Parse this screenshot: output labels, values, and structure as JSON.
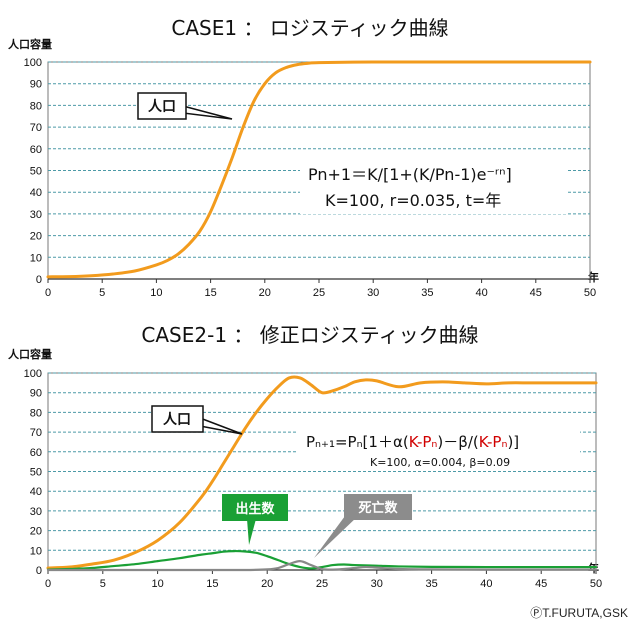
{
  "chart_data": [
    {
      "type": "line",
      "title": "CASE1 ： ロジスティック曲線",
      "ylabel": "人口容量",
      "xlabel": "年",
      "xlim": [
        0,
        50
      ],
      "ylim": [
        0,
        100
      ],
      "x_ticks": [
        0,
        5,
        10,
        15,
        20,
        25,
        30,
        35,
        40,
        45,
        50
      ],
      "y_ticks": [
        0,
        10,
        20,
        30,
        40,
        50,
        60,
        70,
        80,
        90,
        100
      ],
      "grid": true,
      "series": [
        {
          "name": "人口",
          "color": "#f29b1d",
          "x": [
            0,
            2,
            4,
            6,
            8,
            10,
            11,
            12,
            13,
            14,
            15,
            16,
            17,
            18,
            19,
            20,
            21,
            22,
            23,
            24,
            25,
            30,
            35,
            40,
            45,
            50
          ],
          "values": [
            1,
            1.1,
            1.5,
            2.3,
            3.7,
            6.5,
            8.5,
            11.5,
            16,
            22,
            31,
            43,
            56,
            70,
            82,
            90,
            95,
            97.5,
            98.8,
            99.4,
            99.7,
            100,
            100,
            100,
            100,
            100
          ]
        }
      ],
      "annotations": {
        "callout": "人口",
        "formula_line1": "Pn+1＝K/[1+(K/Pn-1)e⁻ʳⁿ]",
        "formula_line2": "K=100, r=0.035, t=年"
      }
    },
    {
      "type": "line",
      "title": "CASE2-1 ： 修正ロジスティック曲線",
      "ylabel": "人口容量",
      "xlabel": "年",
      "xlim": [
        0,
        50
      ],
      "ylim": [
        0,
        100
      ],
      "x_ticks": [
        0,
        5,
        10,
        15,
        20,
        25,
        30,
        35,
        40,
        45,
        50
      ],
      "y_ticks": [
        0,
        10,
        20,
        30,
        40,
        50,
        60,
        70,
        80,
        90,
        100
      ],
      "grid": true,
      "series": [
        {
          "name": "人口",
          "color": "#f29b1d",
          "x": [
            0,
            2,
            4,
            6,
            8,
            10,
            12,
            14,
            15,
            16,
            17,
            18,
            19,
            20,
            21,
            22,
            23,
            24,
            25,
            26,
            27,
            28,
            29,
            30,
            32,
            34,
            36,
            38,
            40,
            42,
            44,
            46,
            48,
            50
          ],
          "values": [
            1,
            1.5,
            3,
            5,
            9,
            15,
            24,
            37,
            45,
            54,
            63,
            72,
            80,
            87,
            93,
            97.5,
            97.5,
            94,
            90,
            91,
            93,
            95.5,
            96.5,
            96,
            93,
            95,
            95.5,
            95,
            94.5,
            95,
            95,
            95,
            95,
            95
          ]
        },
        {
          "name": "出生数",
          "color": "#1aa035",
          "x": [
            0,
            2,
            4,
            6,
            8,
            10,
            12,
            14,
            15,
            16,
            17,
            18,
            19,
            20,
            21,
            22,
            23,
            24,
            25,
            26,
            27,
            28,
            30,
            32,
            35,
            40,
            45,
            50
          ],
          "values": [
            0.2,
            0.5,
            1,
            2,
            3,
            4.5,
            6,
            7.8,
            8.5,
            9.3,
            9.6,
            9.4,
            8.7,
            7,
            5,
            3,
            1.5,
            0.8,
            1.5,
            2.5,
            2.8,
            2.5,
            2.2,
            1.8,
            1.6,
            1.5,
            1.5,
            1.5
          ]
        },
        {
          "name": "死亡数",
          "color": "#888888",
          "x": [
            0,
            5,
            10,
            15,
            18,
            20,
            21,
            22,
            23,
            24,
            25,
            26,
            27,
            28,
            29,
            30,
            32,
            35,
            40,
            45,
            50
          ],
          "values": [
            0,
            0,
            0,
            0,
            0,
            0.3,
            1,
            3,
            4.5,
            2.5,
            0.5,
            0.2,
            0.5,
            1,
            1.5,
            1.2,
            0.5,
            0.3,
            0.2,
            0.2,
            0.2
          ]
        }
      ],
      "annotations": {
        "callout": "人口",
        "birth_badge": "出生数",
        "death_badge": "死亡数",
        "formula_prefix": "Pₙ₊₁=Pₙ[1＋α(",
        "formula_kp1": "K-Pₙ",
        "formula_mid": ")－β/(",
        "formula_kp2": "K-Pₙ",
        "formula_suffix": ")]",
        "formula_red": "#d00000",
        "params": "K=100, α=0.004, β=0.09"
      }
    }
  ],
  "credit": "ⓅT.FURUTA,GSK"
}
